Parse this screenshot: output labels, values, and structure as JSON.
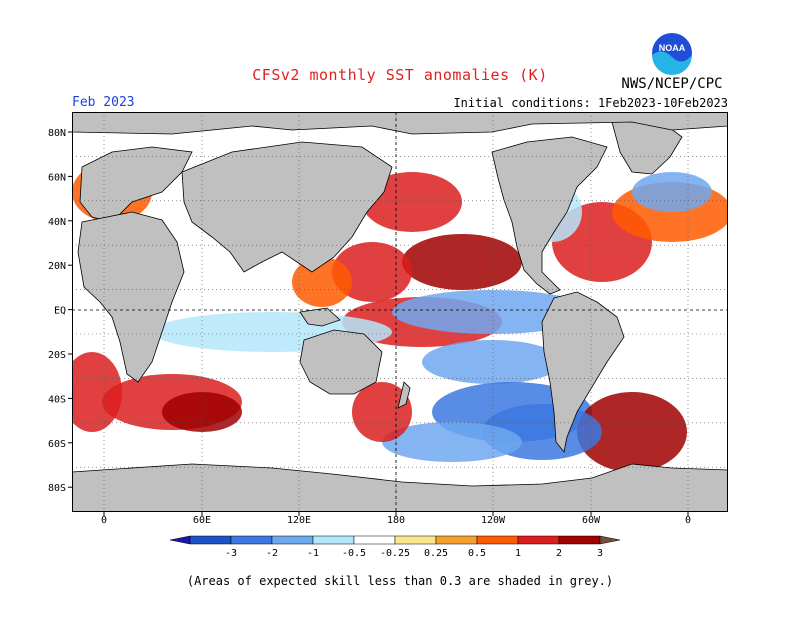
{
  "header": {
    "title": "CFSv2 monthly SST anomalies (K)",
    "organization": "NWS/NCEP/CPC",
    "logo_text": "NOAA",
    "month": "Feb 2023",
    "initial_conditions": "Initial conditions: 1Feb2023-10Feb2023"
  },
  "map": {
    "lat_labels": [
      "80N",
      "60N",
      "40N",
      "20N",
      "EQ",
      "20S",
      "40S",
      "60S",
      "80S"
    ],
    "lon_labels": [
      "0",
      "60E",
      "120E",
      "180",
      "120W",
      "60W",
      "0"
    ],
    "colors": {
      "land": "#c0c0c0",
      "low_skill_grey": "#c4c4c4",
      "ocean_neutral": "#ffffff"
    }
  },
  "colorbar": {
    "labels": [
      "-3",
      "-2",
      "-1",
      "-0.5",
      "-0.25",
      "0.25",
      "0.5",
      "1",
      "2",
      "3"
    ],
    "colors": [
      "#1a1aa8",
      "#1e50c8",
      "#3c78e0",
      "#6ea8f0",
      "#b4e6fa",
      "#ffffff",
      "#fae68c",
      "#f5a02d",
      "#ff5a00",
      "#dc1e1e",
      "#a00000",
      "#7a4a3a"
    ]
  },
  "footnote": "(Areas of expected skill less than 0.3 are shaded in grey.)"
}
